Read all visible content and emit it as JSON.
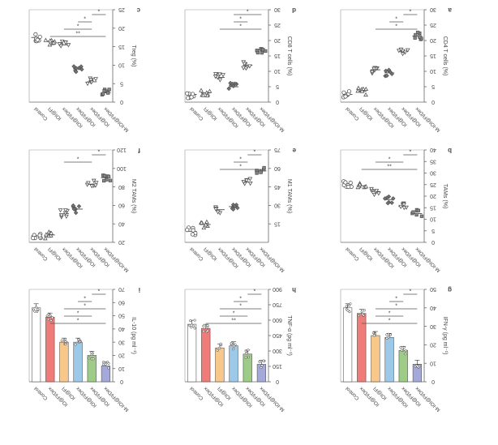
{
  "figure": {
    "note": ""
  },
  "chart_data": [
    {
      "id": "a",
      "type": "scatter",
      "categories": [
        "Control",
        "IOI@Fl",
        "IOI@Fl/Dex",
        "IO@Fl/Dex",
        "IO@Fl/Dex",
        "M-IOI@Fl/Dex"
      ],
      "ylabel": "CD4 T cells (%)",
      "ylim": [
        0,
        30
      ],
      "yticks": [
        0,
        5,
        10,
        15,
        20,
        25,
        30
      ],
      "values": [
        2.5,
        3.5,
        10.5,
        9.5,
        16.5,
        21.5
      ],
      "markers": [
        "circle",
        "triangle",
        "triangle-down",
        "diamond",
        "triangle-down",
        "square"
      ],
      "sig": [
        {
          "from": 5,
          "to": 4,
          "label": "*"
        },
        {
          "from": 4,
          "to": 3,
          "label": "*"
        },
        {
          "from": 5,
          "to": 2,
          "label": "*"
        }
      ]
    },
    {
      "id": "d",
      "type": "scatter",
      "categories": [
        "Control",
        "IOI@Fl",
        "IOI@Fl/Dex",
        "IO@Fl/Dex",
        "IO@Fl/Dex",
        "M-IOI@Fl/Dex"
      ],
      "ylabel": "CD8 T cells (%)",
      "ylim": [
        0,
        30
      ],
      "yticks": [
        0,
        5,
        10,
        15,
        20,
        25,
        30
      ],
      "values": [
        2.5,
        3.0,
        8.0,
        5.0,
        12.0,
        17.0
      ],
      "markers": [
        "circle",
        "triangle",
        "triangle-down",
        "diamond",
        "triangle-down",
        "square"
      ],
      "sig": [
        {
          "from": 5,
          "to": 3,
          "label": "*"
        },
        {
          "from": 4,
          "to": 3,
          "label": "*"
        },
        {
          "from": 5,
          "to": 2,
          "label": "*"
        }
      ]
    },
    {
      "id": "c",
      "type": "scatter",
      "categories": [
        "Control",
        "IOI@Fl",
        "IOI@Fl/Dex",
        "IO@Fl/Dex",
        "IO@Fl/Dex",
        "M-IOI@Fl/Dex"
      ],
      "ylabel": "Treg (%)",
      "ylim": [
        0,
        25
      ],
      "yticks": [
        0,
        5,
        10,
        15,
        20,
        25
      ],
      "values": [
        17.5,
        16.5,
        15.5,
        9.0,
        5.5,
        2.5
      ],
      "markers": [
        "circle",
        "triangle",
        "triangle-down",
        "diamond",
        "triangle-down",
        "square"
      ],
      "sig": [
        {
          "from": 5,
          "to": 4,
          "label": "*"
        },
        {
          "from": 4,
          "to": 3,
          "label": "*"
        },
        {
          "from": 4,
          "to": 2,
          "label": "*"
        },
        {
          "from": 5,
          "to": 1,
          "label": "**"
        }
      ]
    },
    {
      "id": "b",
      "type": "scatter",
      "categories": [
        "Control",
        "IOI@Fl",
        "IOI@Fl/Dex",
        "IO@Fl/Dex",
        "IO@Fl/Dex",
        "M-IOI@Fl/Dex"
      ],
      "ylabel": "TAMs (%)",
      "ylim": [
        0,
        40
      ],
      "yticks": [
        0,
        5,
        10,
        15,
        20,
        25,
        30,
        35,
        40
      ],
      "values": [
        25.5,
        24.5,
        22.0,
        18.5,
        15.5,
        12.5
      ],
      "markers": [
        "circle",
        "triangle",
        "triangle-down",
        "diamond",
        "triangle-down",
        "square"
      ],
      "sig": [
        {
          "from": 5,
          "to": 4,
          "label": "*"
        },
        {
          "from": 4,
          "to": 2,
          "label": "*"
        },
        {
          "from": 5,
          "to": 1,
          "label": "**"
        }
      ]
    },
    {
      "id": "e",
      "type": "scatter",
      "categories": [
        "Control",
        "IOI@Fl",
        "IOI@Fl/Dex",
        "IO@Fl/Dex",
        "IO@Fl/Dex",
        "M-IOI@Fl/Dex"
      ],
      "ylabel": "M1 TAMs (%)",
      "ylim": [
        0,
        75
      ],
      "yticks": [
        15,
        30,
        45,
        60,
        75
      ],
      "values": [
        9.0,
        14.5,
        26.5,
        29.0,
        49.0,
        58.0
      ],
      "markers": [
        "circle",
        "triangle",
        "triangle-down",
        "diamond",
        "triangle-down",
        "square"
      ],
      "sig": [
        {
          "from": 5,
          "to": 4,
          "label": "*"
        },
        {
          "from": 4,
          "to": 3,
          "label": "*"
        },
        {
          "from": 5,
          "to": 2,
          "label": "*"
        }
      ]
    },
    {
      "id": "f",
      "type": "scatter",
      "categories": [
        "Control",
        "IOI@Fl",
        "IOI@Fl/Dex",
        "IO@Fl/Dex",
        "IO@Fl/Dex",
        "M-IOI@Fl/Dex"
      ],
      "ylabel": "M2 TAMs (%)",
      "ylim": [
        20,
        120
      ],
      "yticks": [
        20,
        40,
        60,
        80,
        100,
        120
      ],
      "values": [
        27.0,
        28.0,
        51.0,
        56.0,
        83.0,
        90.0
      ],
      "markers": [
        "circle",
        "triangle",
        "triangle-down",
        "diamond",
        "triangle-down",
        "square"
      ],
      "sig": [
        {
          "from": 5,
          "to": 4,
          "label": "*"
        },
        {
          "from": 4,
          "to": 2,
          "label": "*"
        }
      ]
    },
    {
      "id": "g",
      "type": "bar",
      "categories": [
        "Control",
        "IO@Fl/Dex",
        "IOI@Fl",
        "IOI@Fl/Dex",
        "IO@Fl/Dex",
        "M-IOI@Fl/Dex"
      ],
      "ylabel": "IFN-γ (pg ml⁻¹)",
      "ylim": [
        0,
        50
      ],
      "yticks": [
        0,
        10,
        20,
        30,
        40,
        50
      ],
      "values": [
        40.0,
        37.0,
        25.0,
        24.0,
        17.0,
        9.5
      ],
      "colors": [
        "#ffffff",
        "#ef7c78",
        "#f8c78a",
        "#9cc9e8",
        "#9ecb87",
        "#a4a9d9"
      ],
      "sig": [
        {
          "from": 5,
          "to": 4,
          "label": "*"
        },
        {
          "from": 4,
          "to": 3,
          "label": "*"
        },
        {
          "from": 5,
          "to": 2,
          "label": "*"
        },
        {
          "from": 4,
          "to": 2,
          "label": "*"
        },
        {
          "from": 5,
          "to": 1,
          "label": "*"
        }
      ]
    },
    {
      "id": "h",
      "type": "bar",
      "categories": [
        "Control",
        "IO@Fl/Dex",
        "IOI@Fl",
        "IOI@Fl/Dex",
        "IO@Fl/Dex",
        "M-IOI@Fl/Dex"
      ],
      "ylabel": "TNF-α (pg ml⁻¹)",
      "ylim": [
        0,
        900
      ],
      "yticks": [
        0,
        150,
        300,
        450,
        600,
        750,
        900
      ],
      "values": [
        560,
        520,
        330,
        350,
        270,
        170
      ],
      "colors": [
        "#ffffff",
        "#ef7c78",
        "#f8c78a",
        "#9cc9e8",
        "#9ecb87",
        "#a4a9d9"
      ],
      "sig": [
        {
          "from": 5,
          "to": 4,
          "label": "*"
        },
        {
          "from": 4,
          "to": 3,
          "label": "*"
        },
        {
          "from": 5,
          "to": 2,
          "label": "*"
        },
        {
          "from": 4,
          "to": 2,
          "label": "*"
        },
        {
          "from": 5,
          "to": 1,
          "label": "**"
        }
      ]
    },
    {
      "id": "i",
      "type": "bar",
      "categories": [
        "Control",
        "IO@Fl/Dex",
        "IOI@Fl",
        "IOI@Fl/Dex",
        "IO@Fl/Dex",
        "M-IOI@Fl/Dex"
      ],
      "ylabel": "IL-10 (pg ml⁻¹)",
      "ylim": [
        0,
        70
      ],
      "yticks": [
        0,
        10,
        20,
        30,
        40,
        50,
        60,
        70
      ],
      "values": [
        56,
        49,
        30,
        30,
        20,
        12
      ],
      "colors": [
        "#ffffff",
        "#ef7c78",
        "#f8c78a",
        "#9cc9e8",
        "#9ecb87",
        "#a4a9d9"
      ],
      "sig": [
        {
          "from": 5,
          "to": 4,
          "label": "*"
        },
        {
          "from": 4,
          "to": 3,
          "label": "*"
        },
        {
          "from": 5,
          "to": 2,
          "label": "*"
        },
        {
          "from": 4,
          "to": 2,
          "label": "*"
        },
        {
          "from": 5,
          "to": 1,
          "label": "*"
        }
      ]
    }
  ]
}
